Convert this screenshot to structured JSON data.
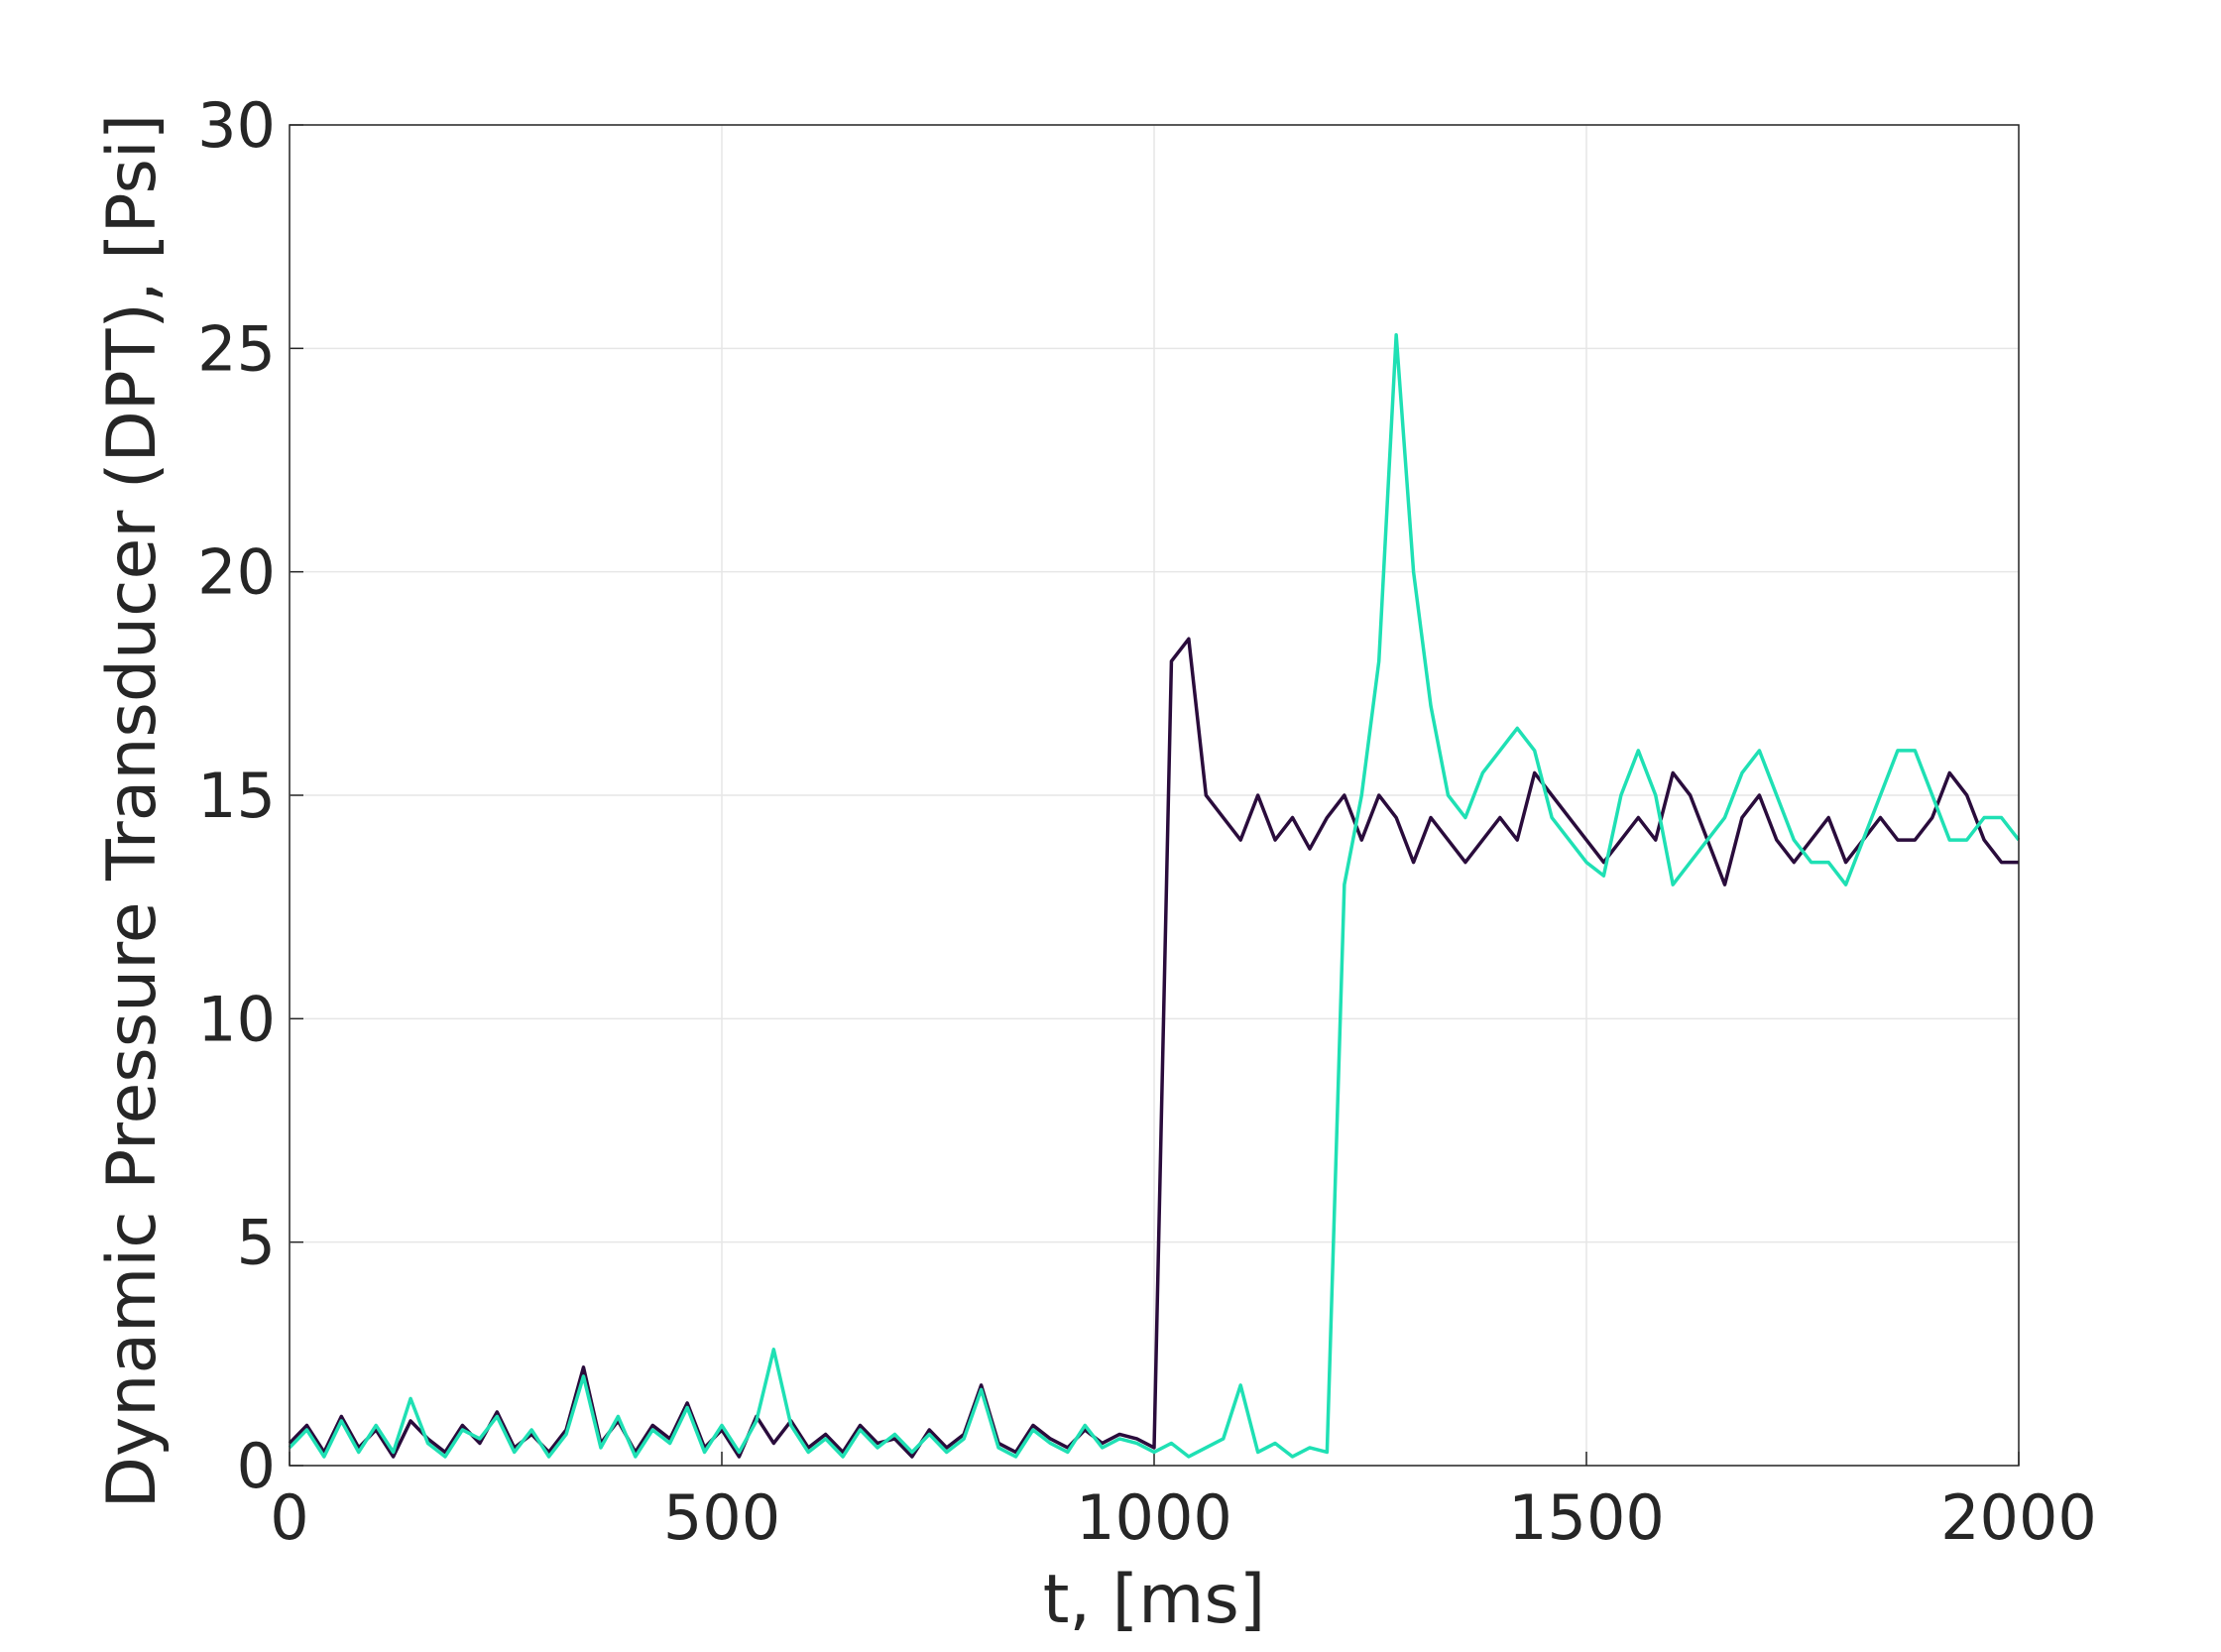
{
  "chart_data": {
    "type": "line",
    "x_label": "t, [ms]",
    "y_label": "Dynamic Pressure Transducer (DPT), [Psi]",
    "xlim": [
      0,
      2000
    ],
    "xticks": [
      0,
      500,
      1000,
      1500,
      2000
    ],
    "ylim": [
      0,
      30
    ],
    "yticks": [
      0,
      5,
      10,
      15,
      20,
      25,
      30
    ],
    "grid": true,
    "x": [
      0,
      20,
      40,
      60,
      80,
      100,
      120,
      140,
      160,
      180,
      200,
      220,
      240,
      260,
      280,
      300,
      320,
      340,
      360,
      380,
      400,
      420,
      440,
      460,
      480,
      500,
      520,
      540,
      560,
      580,
      600,
      620,
      640,
      660,
      680,
      700,
      720,
      740,
      760,
      780,
      800,
      820,
      840,
      860,
      880,
      900,
      920,
      940,
      960,
      980,
      1000,
      1020,
      1040,
      1060,
      1080,
      1100,
      1120,
      1140,
      1160,
      1180,
      1200,
      1220,
      1240,
      1260,
      1280,
      1300,
      1320,
      1340,
      1360,
      1380,
      1400,
      1420,
      1440,
      1460,
      1480,
      1500,
      1520,
      1540,
      1560,
      1580,
      1600,
      1620,
      1640,
      1660,
      1680,
      1700,
      1720,
      1740,
      1760,
      1780,
      1800,
      1820,
      1840,
      1860,
      1880,
      1900,
      1920,
      1940,
      1960,
      1980,
      2000
    ],
    "series": [
      {
        "color": "#2a0c3c",
        "values": [
          0.5,
          0.9,
          0.3,
          1.1,
          0.4,
          0.8,
          0.2,
          1.0,
          0.6,
          0.3,
          0.9,
          0.5,
          1.2,
          0.4,
          0.7,
          0.3,
          0.8,
          2.2,
          0.5,
          1.0,
          0.3,
          0.9,
          0.6,
          1.4,
          0.4,
          0.8,
          0.2,
          1.1,
          0.5,
          1.0,
          0.4,
          0.7,
          0.3,
          0.9,
          0.5,
          0.6,
          0.2,
          0.8,
          0.4,
          0.7,
          1.8,
          0.5,
          0.3,
          0.9,
          0.6,
          0.4,
          0.8,
          0.5,
          0.7,
          0.6,
          0.4,
          18.0,
          18.5,
          15,
          14.5,
          14,
          15,
          14,
          14.5,
          13.8,
          14.5,
          15,
          14,
          15,
          14.5,
          13.5,
          14.5,
          14,
          13.5,
          14,
          14.5,
          14,
          15.5,
          15,
          14.5,
          14,
          13.5,
          14,
          14.5,
          14,
          15.5,
          15,
          14,
          13,
          14.5,
          15,
          14,
          13.5,
          14,
          14.5,
          13.5,
          14,
          14.5,
          14,
          14,
          14.5,
          15.5,
          15,
          14,
          13.5,
          13.5
        ]
      },
      {
        "color": "#1fe0b4",
        "values": [
          0.4,
          0.8,
          0.2,
          1.0,
          0.3,
          0.9,
          0.3,
          1.5,
          0.5,
          0.2,
          0.8,
          0.6,
          1.1,
          0.3,
          0.8,
          0.2,
          0.7,
          2.0,
          0.4,
          1.1,
          0.2,
          0.8,
          0.5,
          1.3,
          0.3,
          0.9,
          0.3,
          1.0,
          2.6,
          0.9,
          0.3,
          0.6,
          0.2,
          0.8,
          0.4,
          0.7,
          0.3,
          0.7,
          0.3,
          0.6,
          1.7,
          0.4,
          0.2,
          0.8,
          0.5,
          0.3,
          0.9,
          0.4,
          0.6,
          0.5,
          0.3,
          0.5,
          0.2,
          0.4,
          0.6,
          1.8,
          0.3,
          0.5,
          0.2,
          0.4,
          0.3,
          13,
          15,
          18,
          25.3,
          20,
          17,
          15,
          14.5,
          15.5,
          16,
          16.5,
          16,
          14.5,
          14,
          13.5,
          13.2,
          15,
          16,
          15,
          13,
          13.5,
          14,
          14.5,
          15.5,
          16,
          15,
          14,
          13.5,
          13.5,
          13,
          14,
          15,
          16,
          16,
          15,
          14,
          14,
          14.5,
          14.5,
          14
        ]
      }
    ]
  }
}
